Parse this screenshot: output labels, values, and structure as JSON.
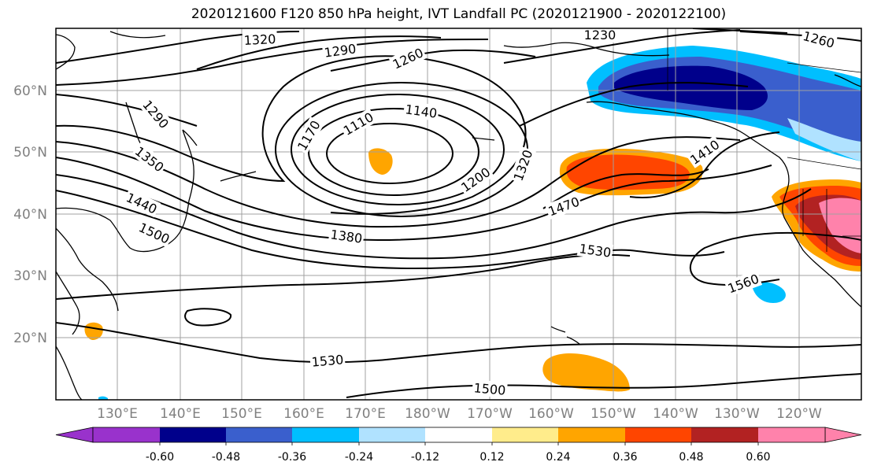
{
  "title": "2020121600 F120 850 hPa height, IVT Landfall PC (2020121900 - 2020122100)",
  "map": {
    "lat_labels": [
      "60°N",
      "50°N",
      "40°N",
      "30°N",
      "20°N"
    ],
    "lon_labels": [
      "130°E",
      "140°E",
      "150°E",
      "160°E",
      "170°E",
      "180°W",
      "170°W",
      "160°W",
      "150°W",
      "140°W",
      "130°W",
      "120°W"
    ],
    "contour_labels": [
      "1320",
      "1290",
      "1260",
      "1230",
      "1260",
      "1290",
      "1350",
      "1440",
      "1500",
      "1170",
      "1110",
      "1140",
      "1200",
      "1320",
      "1410",
      "1470",
      "1380",
      "1530",
      "1560",
      "1530",
      "1500"
    ]
  },
  "colorbar": {
    "colors": [
      "#9932cc",
      "#00008b",
      "#3a5fcd",
      "#00bfff",
      "#b0e2ff",
      "#ffffff",
      "#ffec8b",
      "#ffa500",
      "#ff4500",
      "#b22222",
      "#ff82ab"
    ],
    "tick_labels": [
      "-0.60",
      "-0.48",
      "-0.36",
      "-0.24",
      "-0.12",
      "0.12",
      "0.24",
      "0.36",
      "0.48",
      "0.60"
    ]
  }
}
